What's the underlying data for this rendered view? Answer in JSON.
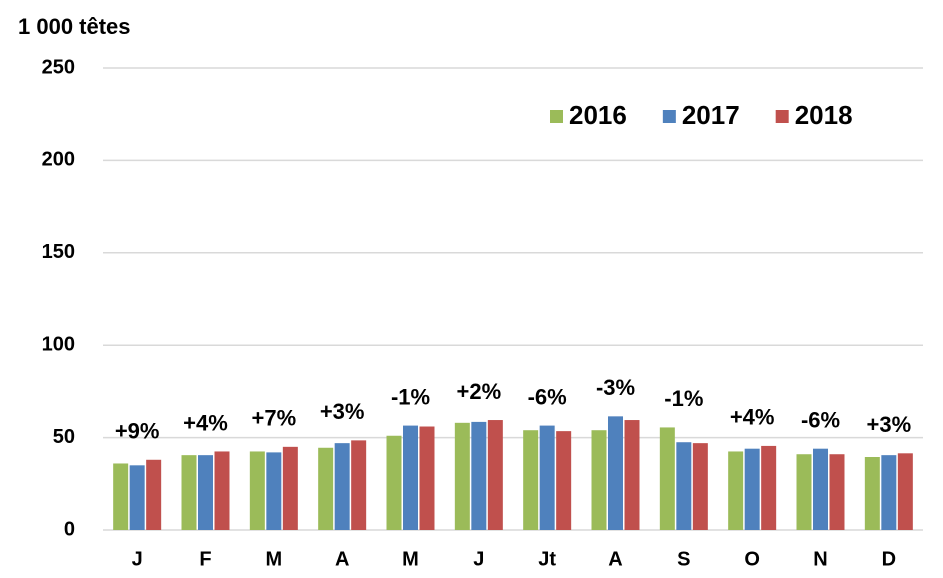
{
  "chart_data": {
    "type": "bar",
    "y_label": "1 000 têtes",
    "categories": [
      "J",
      "F",
      "M",
      "A",
      "M",
      "J",
      "Jt",
      "A",
      "S",
      "O",
      "N",
      "D"
    ],
    "series": [
      {
        "name": "2016",
        "color": "#9bbb59",
        "values": [
          36,
          40.5,
          42.5,
          44.5,
          51,
          58,
          54,
          54,
          55.5,
          42.5,
          41,
          39.5
        ]
      },
      {
        "name": "2017",
        "color": "#4f81bd",
        "values": [
          35,
          40.5,
          42,
          47,
          56.5,
          58.5,
          56.5,
          61.5,
          47.5,
          44,
          44,
          40.5
        ]
      },
      {
        "name": "2018",
        "color": "#c0504d",
        "values": [
          38,
          42.5,
          45,
          48.5,
          56,
          59.5,
          53.5,
          59.5,
          47,
          45.5,
          41,
          41.5
        ]
      }
    ],
    "annotations": [
      "+9%",
      "+4%",
      "+7%",
      "+3%",
      "-1%",
      "+2%",
      "-6%",
      "-3%",
      "-1%",
      "+4%",
      "-6%",
      "+3%"
    ],
    "ylim": [
      0,
      250
    ],
    "yticks": [
      0,
      50,
      100,
      150,
      200,
      250
    ],
    "grid": true,
    "legend": "top-right"
  }
}
